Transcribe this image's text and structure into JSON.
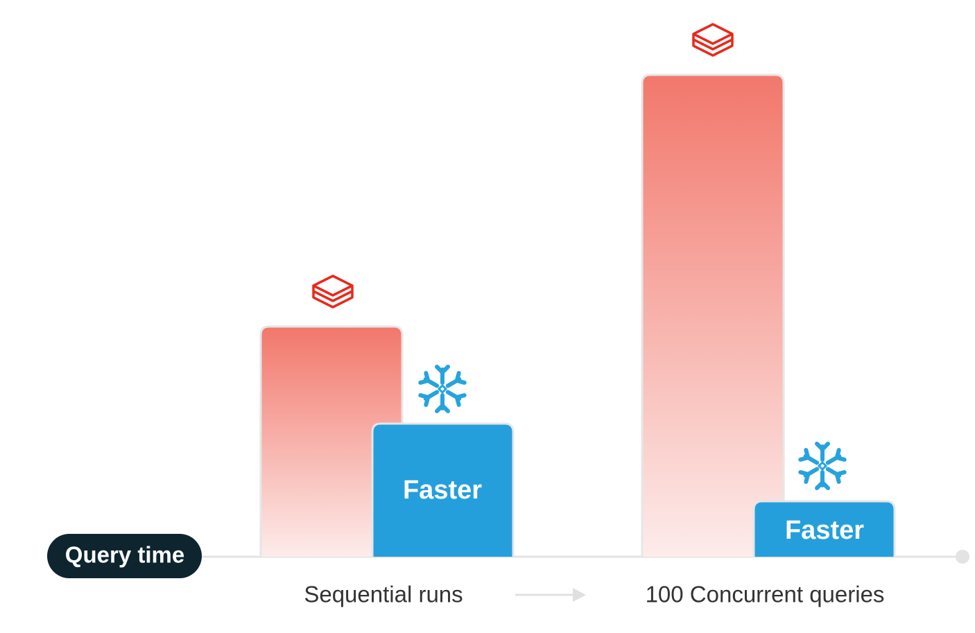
{
  "axis_label": "Query time",
  "groups": [
    {
      "label": "Sequential runs",
      "fast_bar_label": "Faster"
    },
    {
      "label": "100 Concurrent queries",
      "fast_bar_label": "Faster"
    }
  ]
}
